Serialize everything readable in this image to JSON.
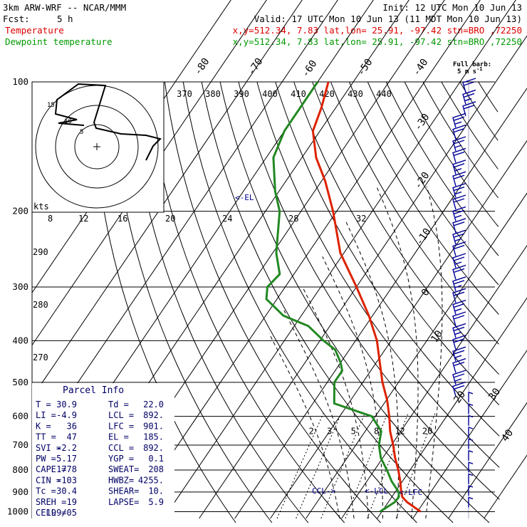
{
  "header": {
    "model": "3km ARW-WRF -- NCAR/MMM",
    "init": "Init: 12 UTC Mon 10 Jun 13",
    "fcst_label": "Fcst:",
    "fcst_value": "5 h",
    "valid": "Valid: 17 UTC Mon 10 Jun 13 (11 MDT Mon 10 Jun 13)",
    "series": [
      {
        "name": "Temperature",
        "info": "x,y=512.34,  7.83  lat,lon= 25.91, -97.42  stn=BRO ,72250",
        "color": "#dd0000"
      },
      {
        "name": "Dewpoint temperature",
        "info": "x,y=512.34,  7.83  lat,lon= 25.91, -97.42  stn=BRO ,72250",
        "color": "#009900"
      }
    ]
  },
  "barb_legend": {
    "line1": "Full barb:",
    "line2": "5 m s",
    "exp": "-1"
  },
  "hodograph": {
    "units": "kts",
    "ring_labels": [
      "8",
      "12",
      "16",
      "20",
      "24",
      "28",
      "32"
    ]
  },
  "parcel_info": {
    "title": "Parcel Info",
    "rows": [
      [
        "T  =",
        "30.9",
        "Td =",
        "22.0"
      ],
      [
        "LI =",
        "-4.9",
        "LCL =",
        "892."
      ],
      [
        "K  =",
        "36",
        "LFC =",
        "901."
      ],
      [
        "TT =",
        "47",
        "EL  =",
        "185."
      ],
      [
        "SVI =",
        "-2.2",
        "CCL =",
        "892."
      ],
      [
        "PW =",
        "5.17",
        "YGP =",
        "0.1"
      ],
      [
        "CAPE =",
        "1778",
        "SWEAT=",
        "208"
      ],
      [
        "CIN =",
        "-103",
        "HWBZ=",
        "4255."
      ],
      [
        "Tc =",
        "30.4",
        "SHEAR=",
        "10."
      ],
      [
        "SREH =",
        "19",
        "LAPSE=",
        "5.9"
      ],
      [
        "CELL =",
        "199/05",
        "",
        ""
      ]
    ]
  },
  "annotations": {
    "el": "EL",
    "ccl": "CCL",
    "lcl": "LCL",
    "lfc": "LFC"
  },
  "chart_data": {
    "type": "line",
    "title": "",
    "y_axis": "pressure (hPa, log scale)",
    "pressure_levels": [
      100,
      200,
      300,
      400,
      500,
      600,
      700,
      800,
      900,
      1000
    ],
    "isotherm_labels": [
      "-80",
      "-70",
      "-60",
      "-50",
      "-40",
      "-30",
      "-20",
      "-10",
      "0",
      "10",
      "20",
      "30",
      "40"
    ],
    "theta_labels_top": [
      "370",
      "380",
      "390",
      "400",
      "410",
      "420",
      "430",
      "440"
    ],
    "theta_labels_left": [
      "290",
      "280",
      "270"
    ],
    "mixing_ratio_labels": [
      "2",
      "3",
      "5",
      "8",
      "12",
      "20"
    ],
    "series": [
      {
        "name": "Temperature",
        "color": "#dd0000",
        "points": [
          [
            1000,
            30.9
          ],
          [
            950,
            25.3
          ],
          [
            925,
            23.0
          ],
          [
            900,
            21.7
          ],
          [
            850,
            19.4
          ],
          [
            800,
            16.7
          ],
          [
            750,
            13.5
          ],
          [
            700,
            10.5
          ],
          [
            650,
            7.0
          ],
          [
            600,
            3.9
          ],
          [
            550,
            0.2
          ],
          [
            500,
            -4.5
          ],
          [
            450,
            -9.0
          ],
          [
            400,
            -14.0
          ],
          [
            350,
            -21.0
          ],
          [
            300,
            -30.0
          ],
          [
            250,
            -41.0
          ],
          [
            200,
            -51.0
          ],
          [
            170,
            -59.0
          ],
          [
            150,
            -66.0
          ],
          [
            130,
            -72.0
          ],
          [
            115,
            -74.0
          ],
          [
            100,
            -77.0
          ]
        ]
      },
      {
        "name": "Dewpoint temperature",
        "color": "#009900",
        "points": [
          [
            1000,
            19.5
          ],
          [
            950,
            21.8
          ],
          [
            925,
            22.0
          ],
          [
            900,
            21.0
          ],
          [
            850,
            17.0
          ],
          [
            800,
            13.5
          ],
          [
            750,
            9.5
          ],
          [
            700,
            6.5
          ],
          [
            650,
            4.5
          ],
          [
            600,
            -1.0
          ],
          [
            560,
            -14.0
          ],
          [
            500,
            -18.0
          ],
          [
            470,
            -18.0
          ],
          [
            450,
            -20.0
          ],
          [
            420,
            -24.0
          ],
          [
            400,
            -29.0
          ],
          [
            370,
            -36.0
          ],
          [
            350,
            -45.0
          ],
          [
            320,
            -53.0
          ],
          [
            300,
            -55.0
          ],
          [
            280,
            -54.0
          ],
          [
            250,
            -59.0
          ],
          [
            200,
            -66.0
          ],
          [
            180,
            -71.0
          ],
          [
            150,
            -78.0
          ],
          [
            130,
            -80.0
          ],
          [
            100,
            -80.0
          ]
        ]
      }
    ],
    "hodograph_segments": 3,
    "wind_barbs_count": 37
  }
}
